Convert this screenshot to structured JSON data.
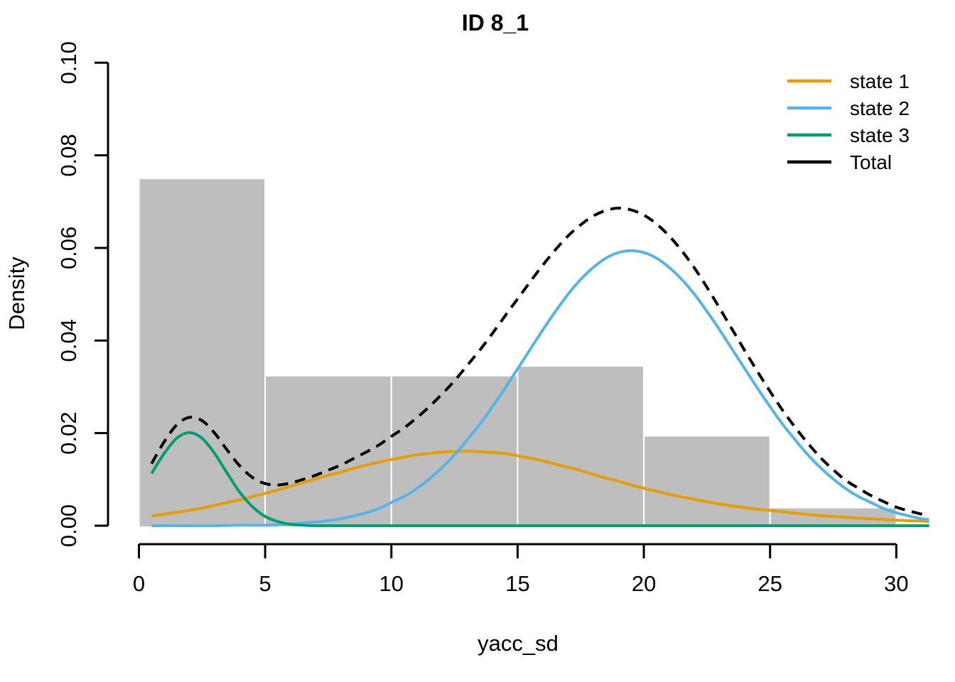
{
  "title": "ID 8_1",
  "axes": {
    "x": {
      "label": "yacc_sd",
      "ticks": [
        {
          "value": 0,
          "label": "0"
        },
        {
          "value": 5,
          "label": "5"
        },
        {
          "value": 10,
          "label": "10"
        },
        {
          "value": 15,
          "label": "15"
        },
        {
          "value": 20,
          "label": "20"
        },
        {
          "value": 25,
          "label": "25"
        },
        {
          "value": 30,
          "label": "30"
        }
      ]
    },
    "y": {
      "label": "Density",
      "ticks": [
        {
          "value": 0.0,
          "label": "0.00"
        },
        {
          "value": 0.02,
          "label": "0.02"
        },
        {
          "value": 0.04,
          "label": "0.04"
        },
        {
          "value": 0.06,
          "label": "0.06"
        },
        {
          "value": 0.08,
          "label": "0.08"
        },
        {
          "value": 0.1,
          "label": "0.10"
        }
      ]
    }
  },
  "legend": {
    "entries": [
      {
        "label": "state 1",
        "color": "#E69F00",
        "dashed": false
      },
      {
        "label": "state 2",
        "color": "#56B4E9",
        "dashed": false
      },
      {
        "label": "state 3",
        "color": "#009E73",
        "dashed": false
      },
      {
        "label": "Total",
        "color": "#000000",
        "dashed": false
      }
    ]
  },
  "colors": {
    "histogram_fill": "#BEBEBE",
    "histogram_border": "#FFFFFF",
    "axis": "#000000"
  },
  "chart_data": {
    "type": "histogram+density-lines",
    "title": "ID 8_1",
    "xlabel": "yacc_sd",
    "ylabel": "Density",
    "xlim": [
      0,
      31.3
    ],
    "ylim": [
      0,
      0.1
    ],
    "x_ticks": [
      0,
      5,
      10,
      15,
      20,
      25,
      30
    ],
    "y_ticks": [
      0.0,
      0.02,
      0.04,
      0.06,
      0.08,
      0.1
    ],
    "grid": false,
    "legend_position": "topright",
    "histogram": {
      "fill": "#BEBEBE",
      "border": "#FFFFFF",
      "bin_edges": [
        0,
        5,
        10,
        15,
        20,
        25,
        30
      ],
      "densities": [
        0.075,
        0.0324,
        0.0324,
        0.0345,
        0.0194,
        0.0039
      ]
    },
    "series": [
      {
        "name": "state 1",
        "color": "#E69F00",
        "line_style": "solid",
        "points": [
          [
            0.5,
            0.0021
          ],
          [
            1,
            0.0025
          ],
          [
            1.5,
            0.0029
          ],
          [
            2,
            0.0033
          ],
          [
            2.5,
            0.0038
          ],
          [
            3,
            0.0044
          ],
          [
            3.5,
            0.005
          ],
          [
            4,
            0.0056
          ],
          [
            4.5,
            0.0063
          ],
          [
            5,
            0.007
          ],
          [
            5.5,
            0.0077
          ],
          [
            6,
            0.0085
          ],
          [
            6.5,
            0.0093
          ],
          [
            7,
            0.0101
          ],
          [
            7.5,
            0.0109
          ],
          [
            8,
            0.0116
          ],
          [
            8.5,
            0.0124
          ],
          [
            9,
            0.0131
          ],
          [
            9.5,
            0.0137
          ],
          [
            10,
            0.0143
          ],
          [
            10.5,
            0.0148
          ],
          [
            11,
            0.0153
          ],
          [
            11.5,
            0.0156
          ],
          [
            12,
            0.0159
          ],
          [
            12.5,
            0.016
          ],
          [
            13,
            0.0161
          ],
          [
            13.5,
            0.016
          ],
          [
            14,
            0.0158
          ],
          [
            14.5,
            0.0156
          ],
          [
            15,
            0.0151
          ],
          [
            15.5,
            0.0146
          ],
          [
            16,
            0.014
          ],
          [
            16.5,
            0.0133
          ],
          [
            17,
            0.0126
          ],
          [
            17.5,
            0.0119
          ],
          [
            18,
            0.0111
          ],
          [
            18.5,
            0.0103
          ],
          [
            19,
            0.0096
          ],
          [
            19.5,
            0.0088
          ],
          [
            20,
            0.0081
          ],
          [
            21,
            0.0068
          ],
          [
            22,
            0.0057
          ],
          [
            23,
            0.0047
          ],
          [
            24,
            0.0039
          ],
          [
            25,
            0.0033
          ],
          [
            26,
            0.0027
          ],
          [
            27,
            0.0022
          ],
          [
            28,
            0.0018
          ],
          [
            29,
            0.0015
          ],
          [
            30,
            0.0012
          ],
          [
            31,
            0.001
          ],
          [
            31.3,
            0.0009
          ]
        ]
      },
      {
        "name": "state 2",
        "color": "#56B4E9",
        "line_style": "solid",
        "points": [
          [
            0.5,
            0.0
          ],
          [
            1,
            0.0
          ],
          [
            2,
            0.0
          ],
          [
            3,
            0.0
          ],
          [
            4,
            0.0001
          ],
          [
            5,
            0.0001
          ],
          [
            5.5,
            0.0002
          ],
          [
            6,
            0.0004
          ],
          [
            6.5,
            0.0006
          ],
          [
            7,
            0.0008
          ],
          [
            7.5,
            0.0011
          ],
          [
            8,
            0.0015
          ],
          [
            8.5,
            0.0021
          ],
          [
            9,
            0.0028
          ],
          [
            9.5,
            0.0037
          ],
          [
            10,
            0.005
          ],
          [
            10.5,
            0.0063
          ],
          [
            11,
            0.008
          ],
          [
            11.5,
            0.0101
          ],
          [
            12,
            0.0125
          ],
          [
            12.5,
            0.0153
          ],
          [
            13,
            0.0185
          ],
          [
            13.5,
            0.0219
          ],
          [
            14,
            0.0257
          ],
          [
            14.5,
            0.0297
          ],
          [
            15,
            0.0339
          ],
          [
            15.5,
            0.0381
          ],
          [
            16,
            0.0423
          ],
          [
            16.5,
            0.0463
          ],
          [
            17,
            0.05
          ],
          [
            17.5,
            0.0532
          ],
          [
            18,
            0.0558
          ],
          [
            18.5,
            0.0578
          ],
          [
            19,
            0.059
          ],
          [
            19.5,
            0.0594
          ],
          [
            20,
            0.059
          ],
          [
            20.5,
            0.0578
          ],
          [
            21,
            0.0558
          ],
          [
            21.5,
            0.0532
          ],
          [
            22,
            0.05
          ],
          [
            22.5,
            0.0463
          ],
          [
            23,
            0.0423
          ],
          [
            23.5,
            0.0381
          ],
          [
            24,
            0.0339
          ],
          [
            24.5,
            0.0297
          ],
          [
            25,
            0.0257
          ],
          [
            25.5,
            0.0219
          ],
          [
            26,
            0.0185
          ],
          [
            26.5,
            0.0153
          ],
          [
            27,
            0.0125
          ],
          [
            27.5,
            0.0101
          ],
          [
            28,
            0.008
          ],
          [
            28.5,
            0.0063
          ],
          [
            29,
            0.005
          ],
          [
            29.5,
            0.0037
          ],
          [
            30,
            0.0028
          ],
          [
            30.5,
            0.0021
          ],
          [
            31,
            0.0015
          ],
          [
            31.3,
            0.0013
          ]
        ]
      },
      {
        "name": "state 3",
        "color": "#009E73",
        "line_style": "solid",
        "points": [
          [
            0.5,
            0.0113
          ],
          [
            1,
            0.0156
          ],
          [
            1.5,
            0.0189
          ],
          [
            2,
            0.0201
          ],
          [
            2.5,
            0.0189
          ],
          [
            3,
            0.0156
          ],
          [
            3.5,
            0.0113
          ],
          [
            4,
            0.0072
          ],
          [
            4.5,
            0.0041
          ],
          [
            5,
            0.002
          ],
          [
            5.5,
            0.0009
          ],
          [
            6,
            0.0003
          ],
          [
            6.5,
            0.0001
          ],
          [
            7,
            0.0
          ],
          [
            8,
            0.0
          ],
          [
            10,
            0.0
          ],
          [
            12,
            0.0
          ],
          [
            14,
            0.0
          ],
          [
            16,
            0.0
          ],
          [
            18,
            0.0
          ],
          [
            20,
            0.0
          ],
          [
            22,
            0.0
          ],
          [
            24,
            0.0
          ],
          [
            26,
            0.0
          ],
          [
            28,
            0.0
          ],
          [
            30,
            0.0
          ],
          [
            31.3,
            0.0
          ]
        ]
      },
      {
        "name": "Total",
        "color": "#000000",
        "line_style": "dashed",
        "points": [
          [
            0.5,
            0.0134
          ],
          [
            1,
            0.0181
          ],
          [
            1.5,
            0.0218
          ],
          [
            2,
            0.0234
          ],
          [
            2.5,
            0.0227
          ],
          [
            3,
            0.02
          ],
          [
            3.5,
            0.0163
          ],
          [
            4,
            0.0129
          ],
          [
            4.5,
            0.0104
          ],
          [
            5,
            0.0091
          ],
          [
            5.5,
            0.0088
          ],
          [
            6,
            0.0092
          ],
          [
            6.5,
            0.01
          ],
          [
            7,
            0.0109
          ],
          [
            7.5,
            0.012
          ],
          [
            8,
            0.0131
          ],
          [
            8.5,
            0.0145
          ],
          [
            9,
            0.0159
          ],
          [
            9.5,
            0.0174
          ],
          [
            10,
            0.0193
          ],
          [
            10.5,
            0.0211
          ],
          [
            11,
            0.0233
          ],
          [
            11.5,
            0.0257
          ],
          [
            12,
            0.0284
          ],
          [
            12.5,
            0.0313
          ],
          [
            13,
            0.0346
          ],
          [
            13.5,
            0.0379
          ],
          [
            14,
            0.0415
          ],
          [
            14.5,
            0.0453
          ],
          [
            15,
            0.049
          ],
          [
            15.5,
            0.0527
          ],
          [
            16,
            0.0563
          ],
          [
            16.5,
            0.0596
          ],
          [
            17,
            0.0626
          ],
          [
            17.5,
            0.065
          ],
          [
            18,
            0.0669
          ],
          [
            18.5,
            0.0681
          ],
          [
            19,
            0.0686
          ],
          [
            19.5,
            0.0682
          ],
          [
            20,
            0.0671
          ],
          [
            20.5,
            0.0652
          ],
          [
            21,
            0.0626
          ],
          [
            21.5,
            0.0594
          ],
          [
            22,
            0.0557
          ],
          [
            22.5,
            0.0515
          ],
          [
            23,
            0.047
          ],
          [
            23.5,
            0.0424
          ],
          [
            24,
            0.0378
          ],
          [
            24.5,
            0.0333
          ],
          [
            25,
            0.029
          ],
          [
            25.5,
            0.0249
          ],
          [
            26,
            0.0212
          ],
          [
            26.5,
            0.0178
          ],
          [
            27,
            0.0147
          ],
          [
            27.5,
            0.0121
          ],
          [
            28,
            0.0098
          ],
          [
            28.5,
            0.0081
          ],
          [
            29,
            0.0065
          ],
          [
            29.5,
            0.0052
          ],
          [
            30,
            0.004
          ],
          [
            30.5,
            0.0032
          ],
          [
            31,
            0.0025
          ],
          [
            31.3,
            0.0022
          ]
        ]
      }
    ]
  }
}
